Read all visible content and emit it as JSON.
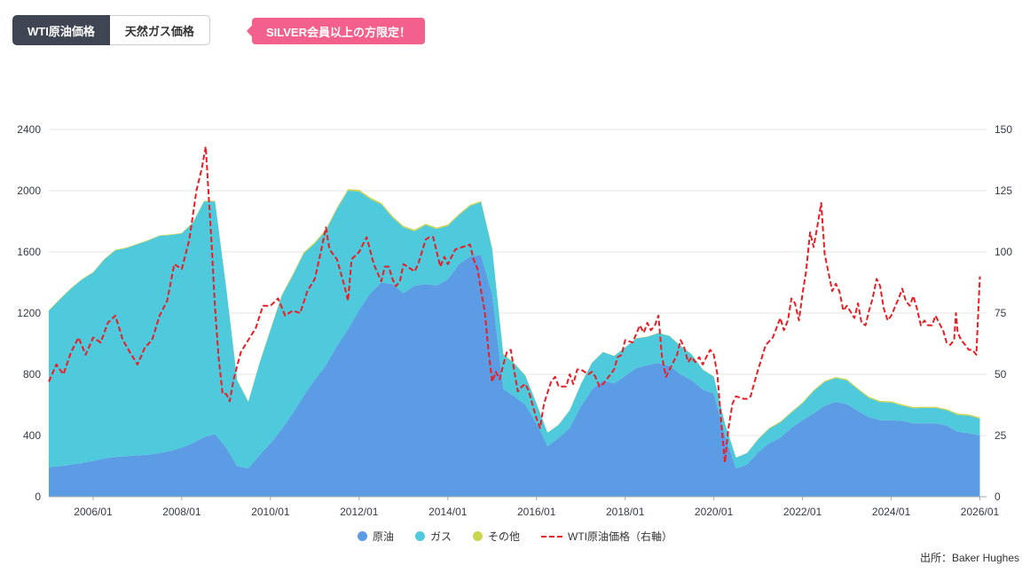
{
  "header": {
    "tabs": [
      {
        "label": "WTI原油価格",
        "active": true
      },
      {
        "label": "天然ガス価格",
        "active": false
      }
    ],
    "badge_label": "SILVER会員以上の方限定！"
  },
  "footer": {
    "source": "出所：Baker Hughes"
  },
  "colors": {
    "tab_active_bg": "#3f4552",
    "badge_bg": "#f2608b",
    "oil": "#5b9ce4",
    "gas": "#4fc9dc",
    "other": "#c9d44f",
    "wti": "#ea1d24",
    "grid": "#e4e4e4",
    "axis_line": "#a9a9a9",
    "axis_text": "#333a47"
  },
  "chart_data": {
    "type": "area",
    "description": "Stacked area chart of rig counts (oil, gas, other) with WTI crude oil price as dashed line on right axis",
    "x": [
      2005,
      2005.25,
      2005.5,
      2005.75,
      2006,
      2006.25,
      2006.5,
      2006.75,
      2007,
      2007.25,
      2007.5,
      2007.75,
      2008,
      2008.25,
      2008.5,
      2008.75,
      2009,
      2009.25,
      2009.5,
      2009.75,
      2010,
      2010.25,
      2010.5,
      2010.75,
      2011,
      2011.25,
      2011.5,
      2011.75,
      2012,
      2012.25,
      2012.5,
      2012.75,
      2013,
      2013.25,
      2013.5,
      2013.75,
      2014,
      2014.25,
      2014.5,
      2014.75,
      2015,
      2015.25,
      2015.5,
      2015.75,
      2016,
      2016.25,
      2016.5,
      2016.75,
      2017,
      2017.25,
      2017.5,
      2017.75,
      2018,
      2018.25,
      2018.5,
      2018.75,
      2019,
      2019.25,
      2019.5,
      2019.75,
      2020,
      2020.25,
      2020.5,
      2020.75,
      2021,
      2021.25,
      2021.5,
      2021.75,
      2022,
      2022.25,
      2022.5,
      2022.75,
      2023,
      2023.25,
      2023.5,
      2023.75,
      2024,
      2024.25,
      2024.5,
      2024.75,
      2025,
      2025.25,
      2025.5,
      2025.75,
      2026
    ],
    "series": [
      {
        "name": "原油",
        "type": "area-stacked",
        "axis": "left",
        "color": "#5b9ce4",
        "values": [
          195,
          200,
          210,
          220,
          235,
          250,
          260,
          265,
          270,
          275,
          285,
          300,
          320,
          350,
          390,
          410,
          320,
          200,
          185,
          270,
          350,
          440,
          545,
          660,
          765,
          860,
          985,
          1095,
          1220,
          1330,
          1400,
          1390,
          1330,
          1380,
          1390,
          1380,
          1420,
          1520,
          1570,
          1580,
          1320,
          705,
          655,
          600,
          480,
          330,
          385,
          450,
          590,
          700,
          760,
          740,
          790,
          840,
          860,
          875,
          855,
          800,
          760,
          700,
          675,
          400,
          185,
          210,
          290,
          350,
          385,
          450,
          500,
          545,
          595,
          620,
          605,
          560,
          520,
          500,
          500,
          495,
          480,
          480,
          480,
          465,
          425,
          415,
          400
        ]
      },
      {
        "name": "ガス",
        "type": "area-stacked",
        "axis": "left",
        "color": "#4fc9dc",
        "values": [
          1020,
          1090,
          1150,
          1200,
          1230,
          1300,
          1350,
          1360,
          1380,
          1400,
          1420,
          1410,
          1400,
          1440,
          1540,
          1520,
          1050,
          560,
          435,
          600,
          740,
          870,
          900,
          930,
          890,
          880,
          895,
          905,
          775,
          615,
          510,
          435,
          430,
          355,
          385,
          370,
          350,
          320,
          330,
          345,
          300,
          225,
          215,
          190,
          130,
          88,
          85,
          115,
          145,
          175,
          185,
          180,
          185,
          195,
          185,
          195,
          195,
          185,
          170,
          130,
          110,
          80,
          70,
          75,
          85,
          95,
          100,
          100,
          110,
          145,
          155,
          155,
          155,
          140,
          125,
          118,
          115,
          100,
          98,
          100,
          100,
          100,
          110,
          115,
          110
        ]
      },
      {
        "name": "その他",
        "type": "area-stacked",
        "axis": "left",
        "color": "#c9d44f",
        "values": [
          4,
          4,
          4,
          4,
          4,
          4,
          4,
          4,
          4,
          4,
          4,
          4,
          4,
          4,
          4,
          4,
          4,
          4,
          4,
          5,
          6,
          7,
          8,
          8,
          9,
          10,
          10,
          10,
          11,
          11,
          10,
          10,
          10,
          10,
          9,
          9,
          9,
          8,
          8,
          8,
          6,
          5,
          4,
          4,
          2,
          2,
          2,
          2,
          2,
          2,
          2,
          2,
          2,
          2,
          2,
          2,
          2,
          2,
          2,
          2,
          2,
          2,
          2,
          2,
          4,
          5,
          6,
          6,
          7,
          7,
          7,
          7,
          8,
          8,
          8,
          8,
          8,
          8,
          8,
          8,
          8,
          8,
          8,
          8,
          8
        ]
      },
      {
        "name": "WTI原油価格（右軸）",
        "type": "line",
        "dashed": true,
        "axis": "right",
        "color": "#ea1d24",
        "points": [
          [
            2005,
            47
          ],
          [
            2005.17,
            54
          ],
          [
            2005.33,
            50
          ],
          [
            2005.5,
            59
          ],
          [
            2005.67,
            65
          ],
          [
            2005.83,
            58
          ],
          [
            2006,
            65
          ],
          [
            2006.17,
            63
          ],
          [
            2006.33,
            71
          ],
          [
            2006.5,
            74
          ],
          [
            2006.67,
            64
          ],
          [
            2006.83,
            59
          ],
          [
            2007,
            54
          ],
          [
            2007.17,
            61
          ],
          [
            2007.33,
            64
          ],
          [
            2007.5,
            74
          ],
          [
            2007.67,
            80
          ],
          [
            2007.83,
            95
          ],
          [
            2008,
            93
          ],
          [
            2008.17,
            105
          ],
          [
            2008.33,
            125
          ],
          [
            2008.45,
            134
          ],
          [
            2008.54,
            143
          ],
          [
            2008.67,
            104
          ],
          [
            2008.75,
            77
          ],
          [
            2008.83,
            57
          ],
          [
            2008.92,
            42
          ],
          [
            2009,
            42
          ],
          [
            2009.08,
            39
          ],
          [
            2009.17,
            48
          ],
          [
            2009.33,
            59
          ],
          [
            2009.5,
            64
          ],
          [
            2009.67,
            69
          ],
          [
            2009.83,
            78
          ],
          [
            2010,
            78
          ],
          [
            2010.17,
            81
          ],
          [
            2010.33,
            74
          ],
          [
            2010.5,
            76
          ],
          [
            2010.67,
            75
          ],
          [
            2010.83,
            84
          ],
          [
            2011,
            89
          ],
          [
            2011.17,
            103
          ],
          [
            2011.25,
            110
          ],
          [
            2011.33,
            101
          ],
          [
            2011.5,
            97
          ],
          [
            2011.67,
            86
          ],
          [
            2011.75,
            80
          ],
          [
            2011.83,
            97
          ],
          [
            2012,
            100
          ],
          [
            2012.17,
            106
          ],
          [
            2012.33,
            95
          ],
          [
            2012.5,
            88
          ],
          [
            2012.58,
            94
          ],
          [
            2012.67,
            94
          ],
          [
            2012.75,
            89
          ],
          [
            2012.83,
            86
          ],
          [
            2012.92,
            88
          ],
          [
            2013,
            95
          ],
          [
            2013.17,
            93
          ],
          [
            2013.25,
            92
          ],
          [
            2013.33,
            95
          ],
          [
            2013.5,
            105
          ],
          [
            2013.58,
            106
          ],
          [
            2013.67,
            106
          ],
          [
            2013.75,
            100
          ],
          [
            2013.83,
            94
          ],
          [
            2013.92,
            98
          ],
          [
            2014,
            95
          ],
          [
            2014.17,
            101
          ],
          [
            2014.33,
            102
          ],
          [
            2014.5,
            103
          ],
          [
            2014.58,
            97
          ],
          [
            2014.67,
            93
          ],
          [
            2014.75,
            84
          ],
          [
            2014.83,
            76
          ],
          [
            2014.92,
            59
          ],
          [
            2015,
            47
          ],
          [
            2015.08,
            51
          ],
          [
            2015.17,
            48
          ],
          [
            2015.25,
            54
          ],
          [
            2015.33,
            59
          ],
          [
            2015.42,
            60
          ],
          [
            2015.5,
            51
          ],
          [
            2015.58,
            43
          ],
          [
            2015.67,
            45
          ],
          [
            2015.75,
            46
          ],
          [
            2015.83,
            43
          ],
          [
            2015.92,
            37
          ],
          [
            2016,
            32
          ],
          [
            2016.08,
            28
          ],
          [
            2016.17,
            38
          ],
          [
            2016.33,
            47
          ],
          [
            2016.42,
            49
          ],
          [
            2016.5,
            45
          ],
          [
            2016.58,
            45
          ],
          [
            2016.67,
            45
          ],
          [
            2016.75,
            50
          ],
          [
            2016.83,
            46
          ],
          [
            2016.92,
            52
          ],
          [
            2017,
            52
          ],
          [
            2017.17,
            50
          ],
          [
            2017.25,
            51
          ],
          [
            2017.33,
            49
          ],
          [
            2017.42,
            45
          ],
          [
            2017.5,
            46
          ],
          [
            2017.67,
            50
          ],
          [
            2017.75,
            52
          ],
          [
            2017.83,
            57
          ],
          [
            2017.92,
            58
          ],
          [
            2018,
            64
          ],
          [
            2018.17,
            63
          ],
          [
            2018.33,
            70
          ],
          [
            2018.42,
            67
          ],
          [
            2018.5,
            71
          ],
          [
            2018.58,
            68
          ],
          [
            2018.67,
            70
          ],
          [
            2018.75,
            74
          ],
          [
            2018.83,
            57
          ],
          [
            2018.92,
            49
          ],
          [
            2019,
            52
          ],
          [
            2019.17,
            58
          ],
          [
            2019.25,
            64
          ],
          [
            2019.33,
            61
          ],
          [
            2019.42,
            55
          ],
          [
            2019.5,
            57
          ],
          [
            2019.58,
            55
          ],
          [
            2019.67,
            57
          ],
          [
            2019.75,
            54
          ],
          [
            2019.83,
            57
          ],
          [
            2019.92,
            60
          ],
          [
            2020,
            58
          ],
          [
            2020.08,
            50
          ],
          [
            2020.17,
            30
          ],
          [
            2020.25,
            14
          ],
          [
            2020.33,
            28
          ],
          [
            2020.42,
            38
          ],
          [
            2020.5,
            41
          ],
          [
            2020.67,
            40
          ],
          [
            2020.75,
            40
          ],
          [
            2020.83,
            41
          ],
          [
            2020.92,
            47
          ],
          [
            2021,
            52
          ],
          [
            2021.17,
            62
          ],
          [
            2021.33,
            65
          ],
          [
            2021.5,
            73
          ],
          [
            2021.58,
            68
          ],
          [
            2021.67,
            72
          ],
          [
            2021.75,
            81
          ],
          [
            2021.83,
            79
          ],
          [
            2021.92,
            72
          ],
          [
            2022,
            83
          ],
          [
            2022.08,
            92
          ],
          [
            2022.17,
            108
          ],
          [
            2022.25,
            102
          ],
          [
            2022.33,
            110
          ],
          [
            2022.42,
            120
          ],
          [
            2022.5,
            99
          ],
          [
            2022.58,
            92
          ],
          [
            2022.67,
            84
          ],
          [
            2022.75,
            87
          ],
          [
            2022.83,
            84
          ],
          [
            2022.92,
            76
          ],
          [
            2023,
            78
          ],
          [
            2023.17,
            73
          ],
          [
            2023.25,
            79
          ],
          [
            2023.33,
            71
          ],
          [
            2023.42,
            70
          ],
          [
            2023.5,
            76
          ],
          [
            2023.58,
            81
          ],
          [
            2023.67,
            89
          ],
          [
            2023.75,
            86
          ],
          [
            2023.83,
            77
          ],
          [
            2023.92,
            72
          ],
          [
            2024,
            74
          ],
          [
            2024.17,
            81
          ],
          [
            2024.25,
            85
          ],
          [
            2024.33,
            80
          ],
          [
            2024.42,
            78
          ],
          [
            2024.5,
            82
          ],
          [
            2024.58,
            77
          ],
          [
            2024.67,
            70
          ],
          [
            2024.75,
            72
          ],
          [
            2024.83,
            70
          ],
          [
            2024.92,
            70
          ],
          [
            2025,
            74
          ],
          [
            2025.08,
            71
          ],
          [
            2025.17,
            68
          ],
          [
            2025.25,
            63
          ],
          [
            2025.33,
            62
          ],
          [
            2025.42,
            64
          ],
          [
            2025.46,
            75
          ],
          [
            2025.5,
            67
          ],
          [
            2025.58,
            64
          ],
          [
            2025.67,
            62
          ],
          [
            2025.75,
            60
          ],
          [
            2025.83,
            60
          ],
          [
            2025.92,
            58
          ],
          [
            2026,
            90
          ]
        ]
      }
    ],
    "left_axis": {
      "min": 0,
      "max": 2400,
      "ticks": [
        0,
        400,
        800,
        1200,
        1600,
        2000,
        2400
      ]
    },
    "right_axis": {
      "min": 0,
      "max": 150,
      "ticks": [
        0,
        25,
        50,
        75,
        100,
        125,
        150
      ]
    },
    "x_axis": {
      "min": 2005,
      "max": 2026.15,
      "ticks": [
        {
          "v": 2006,
          "label": "2006/01"
        },
        {
          "v": 2008,
          "label": "2008/01"
        },
        {
          "v": 2010,
          "label": "2010/01"
        },
        {
          "v": 2012,
          "label": "2012/01"
        },
        {
          "v": 2014,
          "label": "2014/01"
        },
        {
          "v": 2016,
          "label": "2016/01"
        },
        {
          "v": 2018,
          "label": "2018/01"
        },
        {
          "v": 2020,
          "label": "2020/01"
        },
        {
          "v": 2022,
          "label": "2022/01"
        },
        {
          "v": 2024,
          "label": "2024/01"
        },
        {
          "v": 2026,
          "label": "2026/01"
        }
      ]
    },
    "grid": true,
    "legend_position": "bottom"
  }
}
